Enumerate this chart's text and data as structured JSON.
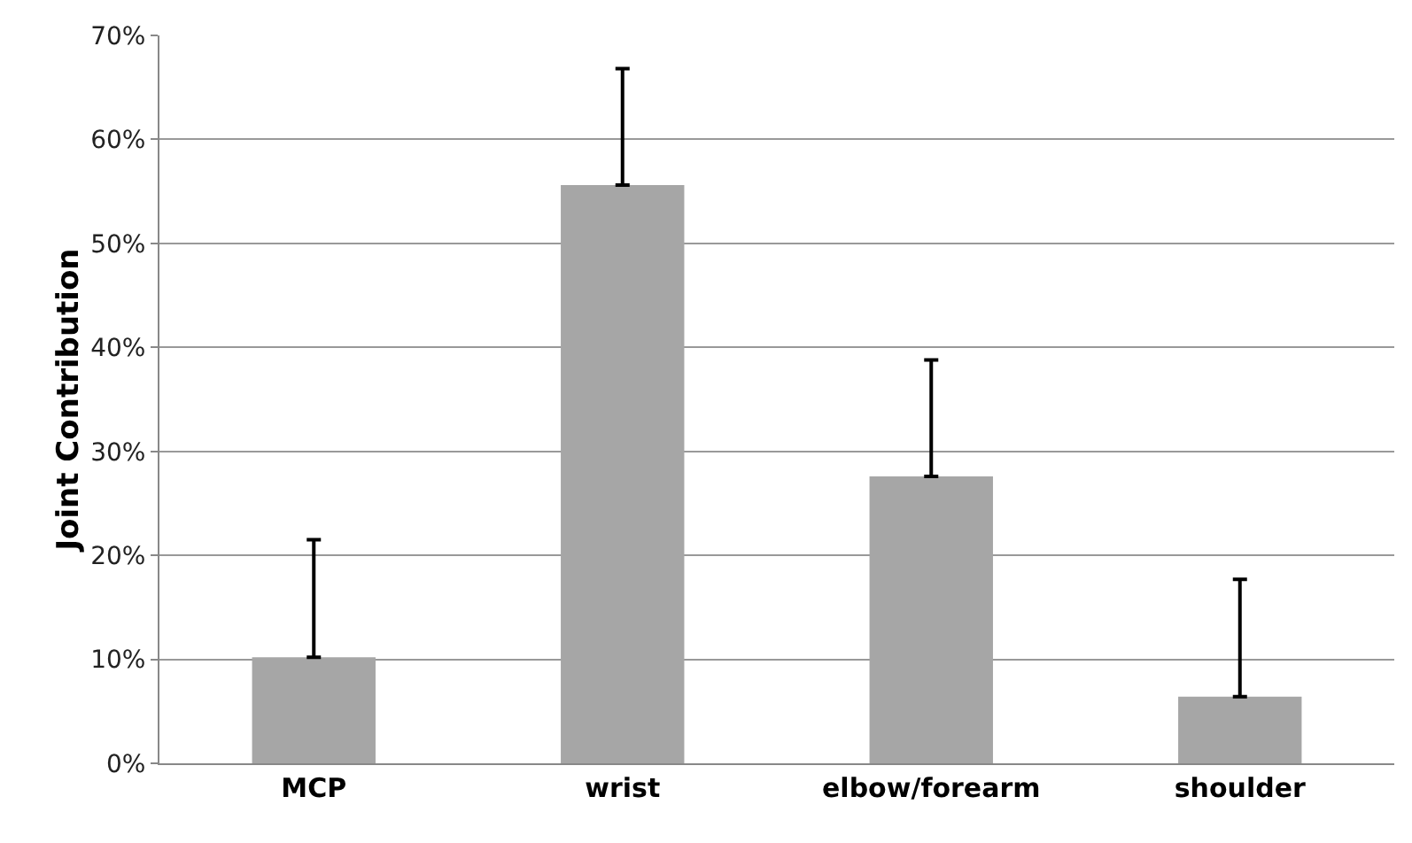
{
  "chart_data": {
    "type": "bar",
    "ylabel": "Joint Contribution",
    "categories": [
      "MCP",
      "wrist",
      "elbow/forearm",
      "shoulder"
    ],
    "values": [
      10.2,
      55.6,
      27.6,
      6.4
    ],
    "errors": [
      [
        10.2,
        21.5
      ],
      [
        55.6,
        66.8
      ],
      [
        27.6,
        38.8
      ],
      [
        6.4,
        17.7
      ]
    ],
    "color": "#a6a6a6",
    "ylim": [
      0,
      70
    ],
    "yticks": [
      {
        "value": 0,
        "label": "0%"
      },
      {
        "value": 10,
        "label": "10%"
      },
      {
        "value": 20,
        "label": "20%"
      },
      {
        "value": 30,
        "label": "30%"
      },
      {
        "value": 40,
        "label": "40%"
      },
      {
        "value": 50,
        "label": "50%"
      },
      {
        "value": 60,
        "label": "60%"
      },
      {
        "value": 70,
        "label": "70%"
      }
    ],
    "grid": "y"
  }
}
